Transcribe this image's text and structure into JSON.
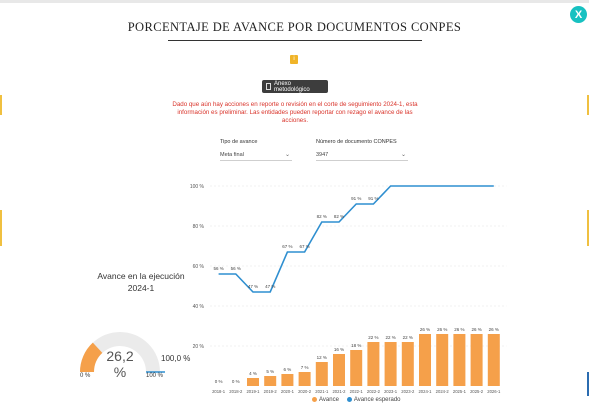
{
  "header": {
    "title": "PORCENTAJE DE AVANCE POR DOCUMENTOS CONPES",
    "close_label": "X",
    "small_icon_label": "i",
    "annex_button_label": "Anexo metodológico"
  },
  "notice": {
    "text": "Dado que aún hay acciones en reporte o revisión en el corte de seguimiento 2024-1, esta información es preliminar. Las entidades pueden reportar con rezago el avance de las acciones."
  },
  "filters": {
    "tipo_label": "Tipo de avance",
    "tipo_value": "Meta final",
    "doc_label": "Número de documento CONPES",
    "doc_value": "3947"
  },
  "gauge": {
    "title": "Avance en la ejecución 2024-1",
    "value_label": "26,2 %",
    "value": 26.2,
    "min_label": "0 %",
    "max_label": "100 %",
    "target_label": "100,0 %",
    "fill_color": "#f5a04a",
    "track_color": "#ebebeb",
    "target_color": "#2f8fd0"
  },
  "chart_data": {
    "type": "bar",
    "y_ticks": [
      "100 %",
      "80 %",
      "60 %",
      "40 %",
      "20 %"
    ],
    "ylim": [
      0,
      100
    ],
    "categories": [
      "2018-1",
      "2018-2",
      "2019-1",
      "2019-2",
      "2020-1",
      "2020-2",
      "2021-1",
      "2021-2",
      "2022-1",
      "2022-2",
      "2023-1",
      "2023-2",
      "2024-1",
      "2024-2",
      "2025-1",
      "2025-2",
      "2026-1"
    ],
    "series": [
      {
        "name": "Avance",
        "color": "#f5a04a",
        "values": [
          0,
          0,
          4,
          5,
          6,
          7,
          12,
          16,
          18,
          22,
          22,
          22,
          26,
          26,
          26,
          26,
          26
        ],
        "labels": [
          "0 %",
          "0 %",
          "4 %",
          "5 %",
          "6 %",
          "7 %",
          "12 %",
          "16 %",
          "18 %",
          "22 %",
          "22 %",
          "22 %",
          "26 %",
          "26 %",
          "26 %",
          "26 %",
          "26 %"
        ]
      },
      {
        "name": "Avance esperado",
        "color": "#2f8fd0",
        "values": [
          56,
          56,
          47,
          47,
          67,
          67,
          82,
          82,
          91,
          91,
          100,
          100,
          100,
          100,
          100,
          100,
          100
        ],
        "labels": [
          "56 %",
          "56 %",
          "47 %",
          "47 %",
          "67 %",
          "67 %",
          "82 %",
          "82 %",
          "91 %",
          "91 %",
          "",
          "",
          "",
          "",
          "",
          "",
          ""
        ]
      }
    ],
    "legend": [
      "Avance",
      "Avance esperado"
    ]
  }
}
